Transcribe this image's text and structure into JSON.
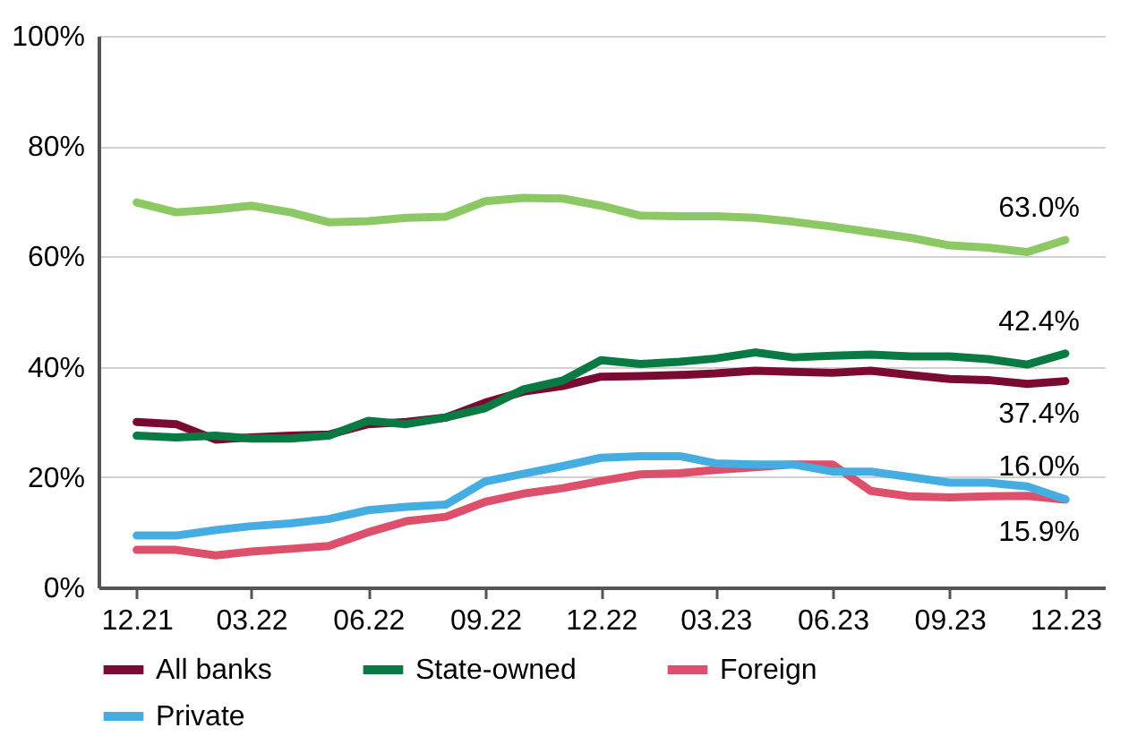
{
  "chart_data": {
    "type": "line",
    "x": [
      "2021-12",
      "2022-01",
      "2022-02",
      "2022-03",
      "2022-04",
      "2022-05",
      "2022-06",
      "2022-07",
      "2022-08",
      "2022-09",
      "2022-10",
      "2022-11",
      "2022-12",
      "2023-01",
      "2023-02",
      "2023-03",
      "2023-04",
      "2023-05",
      "2023-06",
      "2023-07",
      "2023-08",
      "2023-09",
      "2023-10",
      "2023-11",
      "2023-12"
    ],
    "xlim": [
      "2021-11",
      "2024-01"
    ],
    "xticks": [
      {
        "value": "2021-12",
        "label": "12.21"
      },
      {
        "value": "2022-03",
        "label": "03.22"
      },
      {
        "value": "2022-06",
        "label": "06.22"
      },
      {
        "value": "2022-09",
        "label": "09.22"
      },
      {
        "value": "2022-12",
        "label": "12.22"
      },
      {
        "value": "2023-03",
        "label": "03.23"
      },
      {
        "value": "2023-06",
        "label": "06.23"
      },
      {
        "value": "2023-09",
        "label": "09.23"
      },
      {
        "value": "2023-12",
        "label": "12.23"
      }
    ],
    "ylim": [
      0,
      100
    ],
    "yticks": [
      {
        "value": 0,
        "label": "0%"
      },
      {
        "value": 20,
        "label": "20%"
      },
      {
        "value": 40,
        "label": "40%"
      },
      {
        "value": 60,
        "label": "60%"
      },
      {
        "value": 80,
        "label": "80%"
      },
      {
        "value": 100,
        "label": "100%"
      }
    ],
    "grid": "y",
    "legend": "bottom",
    "marker": "none",
    "line_style": "solid",
    "series": [
      {
        "name": "All banks",
        "color": "#7b0a32",
        "values": [
          30,
          29.6,
          26.8,
          27.2,
          27.5,
          27.7,
          29.6,
          30,
          30.8,
          33.5,
          35.5,
          36.5,
          38.2,
          38.3,
          38.5,
          38.8,
          39.3,
          39.1,
          38.9,
          39.3,
          38.5,
          37.8,
          37.6,
          36.9,
          37.4
        ]
      },
      {
        "name": "State-owned",
        "color": "#0a7a43",
        "values": [
          27.5,
          27.2,
          27.5,
          27,
          27,
          27.5,
          30.2,
          29.6,
          30.8,
          32.5,
          35.9,
          37.5,
          41.2,
          40.5,
          40.9,
          41.5,
          42.6,
          41.7,
          42,
          42.2,
          41.9,
          41.9,
          41.4,
          40.4,
          42.4
        ]
      },
      {
        "color": "#8cc864",
        "values": [
          69.8,
          68,
          68.5,
          69.2,
          68,
          66.2,
          66.4,
          67,
          67.2,
          70,
          70.6,
          70.5,
          69.2,
          67.4,
          67.3,
          67.3,
          67,
          66.3,
          65.4,
          64.4,
          63.4,
          62,
          61.6,
          60.8,
          63.0
        ]
      },
      {
        "name": "Foreign",
        "color": "#dd4f6a",
        "values": [
          6.8,
          6.8,
          5.8,
          6.5,
          7,
          7.5,
          10,
          12,
          12.8,
          15.5,
          17,
          18,
          19.3,
          20.5,
          20.7,
          21.3,
          21.8,
          22.3,
          22.3,
          17.5,
          16.5,
          16.3,
          16.5,
          16.6,
          15.9
        ]
      },
      {
        "name": "Private",
        "color": "#45ade2",
        "values": [
          9.4,
          9.4,
          10.4,
          11.1,
          11.6,
          12.4,
          14,
          14.6,
          15,
          19.2,
          20.6,
          22,
          23.5,
          23.8,
          23.8,
          22.5,
          22.3,
          22.3,
          21,
          21,
          20,
          19,
          19,
          18.3,
          16.0
        ]
      }
    ],
    "annotations": [
      {
        "text": "63.0%",
        "x": "2023-12",
        "y": 63.0
      },
      {
        "text": "42.4%",
        "x": "2023-12",
        "y": 42.4
      },
      {
        "text": "37.4%",
        "x": "2023-12",
        "y": 37.4
      },
      {
        "text": "16.0%",
        "x": "2023-12",
        "y": 16.0
      },
      {
        "text": "15.9%",
        "x": "2023-12",
        "y": 15.9
      }
    ]
  }
}
